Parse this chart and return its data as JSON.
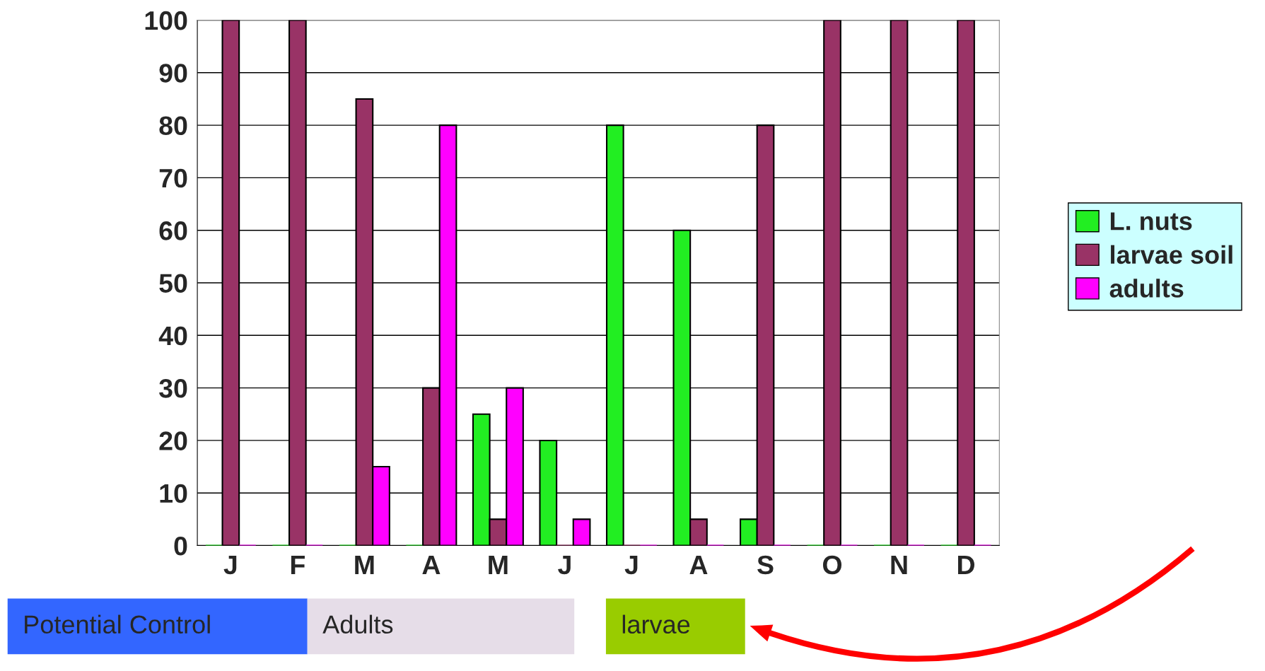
{
  "chart_data": {
    "type": "bar",
    "categories": [
      "J",
      "F",
      "M",
      "A",
      "M",
      "J",
      "J",
      "A",
      "S",
      "O",
      "N",
      "D"
    ],
    "series": [
      {
        "name": "L. nuts",
        "color": "#22ee22",
        "values": [
          0,
          0,
          0,
          0,
          25,
          20,
          80,
          60,
          5,
          0,
          0,
          0
        ]
      },
      {
        "name": "larvae soil",
        "color": "#993366",
        "values": [
          100,
          100,
          85,
          30,
          5,
          0,
          0,
          5,
          80,
          100,
          100,
          100
        ]
      },
      {
        "name": "adults",
        "color": "#ff00ff",
        "values": [
          0,
          0,
          15,
          80,
          30,
          5,
          0,
          0,
          0,
          0,
          0,
          0
        ]
      }
    ],
    "ylim": [
      0,
      100
    ],
    "yticks": [
      0,
      10,
      20,
      30,
      40,
      50,
      60,
      70,
      80,
      90,
      100
    ],
    "grid": "y",
    "legend": "right",
    "annotations": [
      "Potential Control",
      "Adults",
      "larvae"
    ]
  }
}
